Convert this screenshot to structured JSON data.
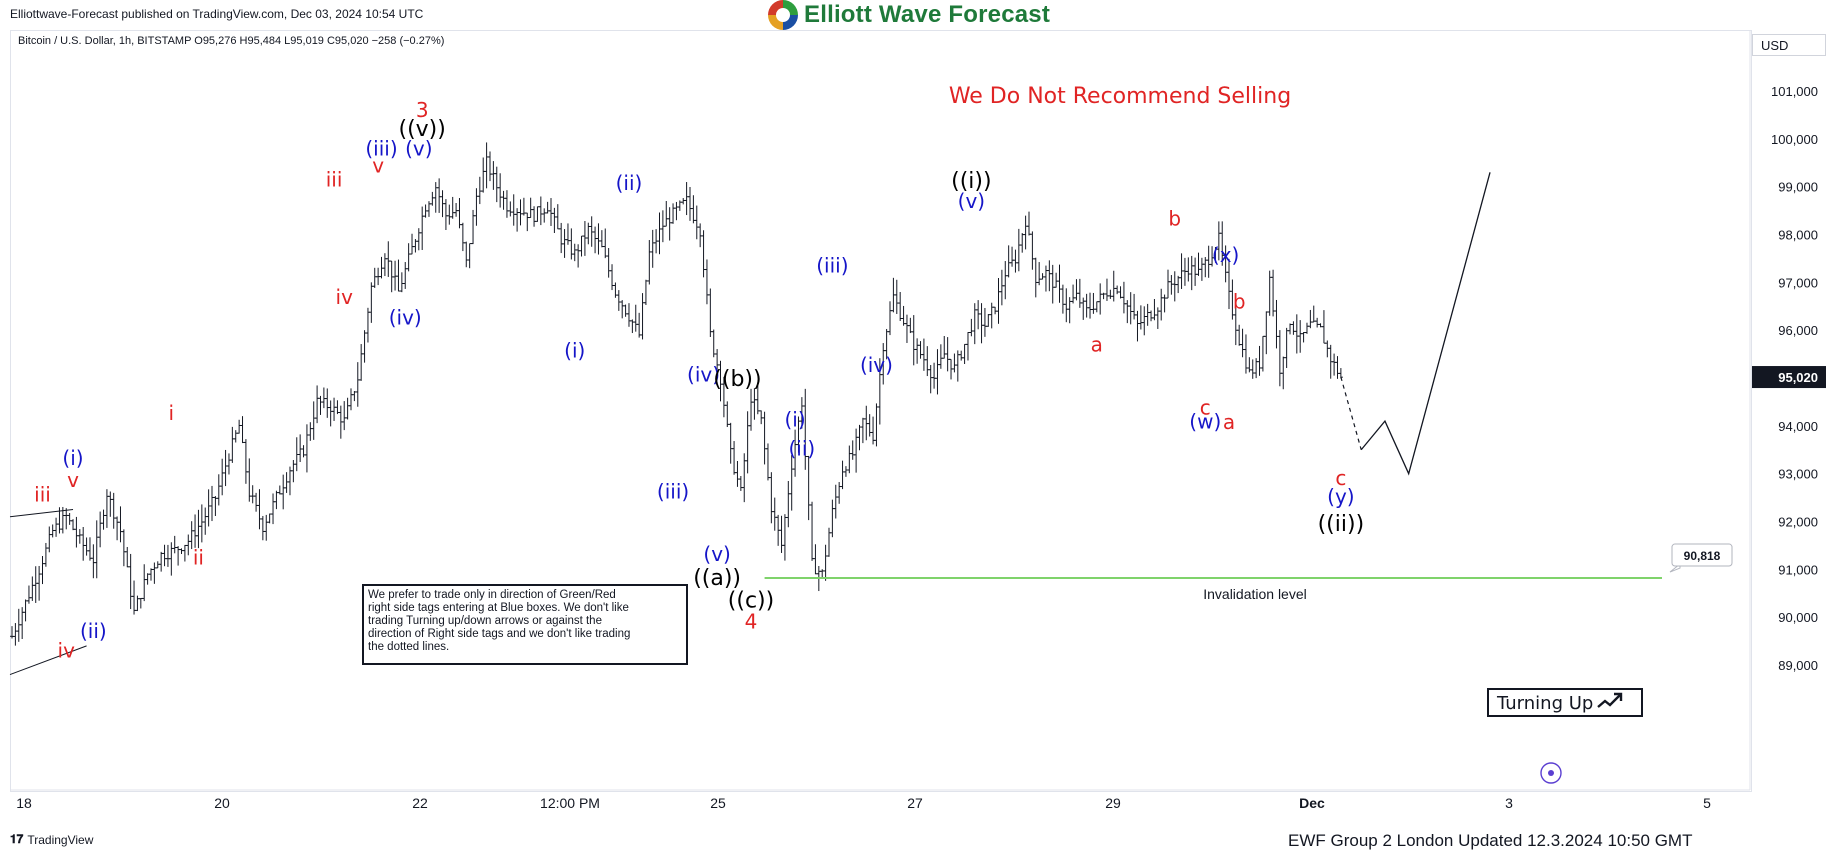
{
  "header": {
    "published_text": "Elliottwave-Forecast published on TradingView.com, Dec 03, 2024 10:54 UTC",
    "logo_text": "Elliott Wave Forecast",
    "symbol_info": "Bitcoin / U.S. Dollar, 1h, BITSTAMP  O95,276  H95,484  L95,019  C95,020  −258 (−0.27%)",
    "currency": "USD"
  },
  "footer": {
    "tradingview_text": "TradingView",
    "updated_text": "EWF Group 2 London Updated 12.3.2024 10:50 GMT"
  },
  "colors": {
    "red": "#e02424",
    "blue": "#1515c8",
    "black": "#000000",
    "green": "#7fd36b",
    "bar": "#131722"
  },
  "chart_data": {
    "type": "line",
    "title": "We Do Not Recommend Selling",
    "xlabel": "",
    "ylabel": "",
    "ylim": [
      88900,
      102300
    ],
    "x_ticks": [
      "18",
      "20",
      "22",
      "12:00 PM",
      "25",
      "27",
      "29",
      "Dec",
      "3",
      "5"
    ],
    "y_ticks": [
      "89,000",
      "90,000",
      "91,000",
      "92,000",
      "93,000",
      "94,000",
      "95,000",
      "96,000",
      "97,000",
      "98,000",
      "99,000",
      "100,000",
      "101,000"
    ],
    "last_price": "95,020",
    "invalidation": {
      "value": 90818,
      "price_label": "90,818",
      "label": "Invalidation level"
    },
    "note_box": "We prefer to trade only in direction of Green/Red right side tags entering at Blue boxes. We don't like trading Turning up/down arrows or against the direction of Right side tags and we don't like trading the dotted lines.",
    "turning_label": "Turning Up",
    "price_path": [
      {
        "t": 0,
        "p": 89600
      },
      {
        "t": 4,
        "p": 90300
      },
      {
        "t": 8,
        "p": 91000
      },
      {
        "t": 12,
        "p": 91800
      },
      {
        "t": 16,
        "p": 92100
      },
      {
        "t": 20,
        "p": 91600
      },
      {
        "t": 24,
        "p": 91200
      },
      {
        "t": 28,
        "p": 92600
      },
      {
        "t": 32,
        "p": 91800
      },
      {
        "t": 36,
        "p": 90100
      },
      {
        "t": 40,
        "p": 90900
      },
      {
        "t": 44,
        "p": 91300
      },
      {
        "t": 48,
        "p": 91400
      },
      {
        "t": 52,
        "p": 91600
      },
      {
        "t": 56,
        "p": 92000
      },
      {
        "t": 60,
        "p": 92500
      },
      {
        "t": 64,
        "p": 93400
      },
      {
        "t": 67,
        "p": 94000
      },
      {
        "t": 70,
        "p": 92600
      },
      {
        "t": 74,
        "p": 91900
      },
      {
        "t": 78,
        "p": 92500
      },
      {
        "t": 82,
        "p": 93100
      },
      {
        "t": 86,
        "p": 93500
      },
      {
        "t": 90,
        "p": 94500
      },
      {
        "t": 94,
        "p": 94400
      },
      {
        "t": 98,
        "p": 94100
      },
      {
        "t": 102,
        "p": 95000
      },
      {
        "t": 106,
        "p": 96900
      },
      {
        "t": 110,
        "p": 97600
      },
      {
        "t": 114,
        "p": 96800
      },
      {
        "t": 118,
        "p": 97700
      },
      {
        "t": 122,
        "p": 98600
      },
      {
        "t": 125,
        "p": 99000
      },
      {
        "t": 128,
        "p": 98400
      },
      {
        "t": 131,
        "p": 98500
      },
      {
        "t": 134,
        "p": 97400
      },
      {
        "t": 137,
        "p": 98800
      },
      {
        "t": 140,
        "p": 99500
      },
      {
        "t": 143,
        "p": 99000
      },
      {
        "t": 146,
        "p": 98600
      },
      {
        "t": 150,
        "p": 98500
      },
      {
        "t": 154,
        "p": 98400
      },
      {
        "t": 158,
        "p": 98600
      },
      {
        "t": 162,
        "p": 97900
      },
      {
        "t": 166,
        "p": 97600
      },
      {
        "t": 170,
        "p": 98100
      },
      {
        "t": 174,
        "p": 97700
      },
      {
        "t": 178,
        "p": 96800
      },
      {
        "t": 182,
        "p": 96300
      },
      {
        "t": 185,
        "p": 95900
      },
      {
        "t": 188,
        "p": 97600
      },
      {
        "t": 192,
        "p": 98200
      },
      {
        "t": 196,
        "p": 98500
      },
      {
        "t": 199,
        "p": 98700
      },
      {
        "t": 203,
        "p": 98100
      },
      {
        "t": 206,
        "p": 95900
      },
      {
        "t": 209,
        "p": 95000
      },
      {
        "t": 212,
        "p": 93400
      },
      {
        "t": 215,
        "p": 92600
      },
      {
        "t": 218,
        "p": 94600
      },
      {
        "t": 221,
        "p": 94100
      },
      {
        "t": 224,
        "p": 92300
      },
      {
        "t": 227,
        "p": 91500
      },
      {
        "t": 230,
        "p": 93200
      },
      {
        "t": 233,
        "p": 94500
      },
      {
        "t": 236,
        "p": 91100
      },
      {
        "t": 239,
        "p": 90900
      },
      {
        "t": 242,
        "p": 92200
      },
      {
        "t": 245,
        "p": 93100
      },
      {
        "t": 248,
        "p": 93400
      },
      {
        "t": 251,
        "p": 94100
      },
      {
        "t": 254,
        "p": 93800
      },
      {
        "t": 257,
        "p": 95700
      },
      {
        "t": 260,
        "p": 96700
      },
      {
        "t": 263,
        "p": 96200
      },
      {
        "t": 266,
        "p": 95700
      },
      {
        "t": 269,
        "p": 95400
      },
      {
        "t": 272,
        "p": 95000
      },
      {
        "t": 275,
        "p": 95500
      },
      {
        "t": 278,
        "p": 95200
      },
      {
        "t": 281,
        "p": 95700
      },
      {
        "t": 284,
        "p": 96300
      },
      {
        "t": 287,
        "p": 96100
      },
      {
        "t": 290,
        "p": 96500
      },
      {
        "t": 293,
        "p": 97200
      },
      {
        "t": 296,
        "p": 97500
      },
      {
        "t": 299,
        "p": 98300
      },
      {
        "t": 302,
        "p": 97100
      },
      {
        "t": 305,
        "p": 97200
      },
      {
        "t": 308,
        "p": 96900
      },
      {
        "t": 311,
        "p": 96500
      },
      {
        "t": 314,
        "p": 96700
      },
      {
        "t": 317,
        "p": 96400
      },
      {
        "t": 320,
        "p": 96600
      },
      {
        "t": 323,
        "p": 96800
      },
      {
        "t": 326,
        "p": 96900
      },
      {
        "t": 329,
        "p": 96500
      },
      {
        "t": 332,
        "p": 96100
      },
      {
        "t": 335,
        "p": 96300
      },
      {
        "t": 338,
        "p": 96500
      },
      {
        "t": 341,
        "p": 96900
      },
      {
        "t": 344,
        "p": 97100
      },
      {
        "t": 347,
        "p": 97300
      },
      {
        "t": 350,
        "p": 97200
      },
      {
        "t": 353,
        "p": 97500
      },
      {
        "t": 356,
        "p": 97900
      },
      {
        "t": 359,
        "p": 96700
      },
      {
        "t": 362,
        "p": 95800
      },
      {
        "t": 365,
        "p": 95100
      },
      {
        "t": 368,
        "p": 95300
      },
      {
        "t": 371,
        "p": 97100
      },
      {
        "t": 374,
        "p": 95200
      },
      {
        "t": 377,
        "p": 96200
      },
      {
        "t": 380,
        "p": 95800
      },
      {
        "t": 383,
        "p": 96100
      },
      {
        "t": 386,
        "p": 96000
      },
      {
        "t": 389,
        "p": 95400
      },
      {
        "t": 392,
        "p": 95020
      }
    ],
    "projection": {
      "dotted": [
        {
          "t": 392,
          "p": 95020
        },
        {
          "t": 398,
          "p": 93500
        }
      ],
      "solid": [
        {
          "t": 398,
          "p": 93500
        },
        {
          "t": 405,
          "p": 94100
        },
        {
          "t": 412,
          "p": 93000
        },
        {
          "t": 436,
          "p": 99300
        }
      ]
    },
    "annotations": [
      {
        "text": "iii",
        "color": "red",
        "t": 9,
        "p": 92420
      },
      {
        "text": "(i)",
        "color": "blue",
        "t": 18,
        "p": 93180
      },
      {
        "text": "v",
        "color": "red",
        "t": 18,
        "p": 92720
      },
      {
        "text": "iv",
        "color": "red",
        "t": 16,
        "p": 89160
      },
      {
        "text": "(ii)",
        "color": "blue",
        "t": 24,
        "p": 89560
      },
      {
        "text": "i",
        "color": "red",
        "t": 47,
        "p": 94120
      },
      {
        "text": "ii",
        "color": "red",
        "t": 55,
        "p": 91100
      },
      {
        "text": "iii",
        "color": "red",
        "t": 95,
        "p": 99000
      },
      {
        "text": "iv",
        "color": "red",
        "t": 98,
        "p": 96550
      },
      {
        "text": "v",
        "color": "red",
        "t": 108,
        "p": 99300
      },
      {
        "text": "(iii)",
        "color": "blue",
        "t": 109,
        "p": 99650
      },
      {
        "text": "(iv)",
        "color": "blue",
        "t": 116,
        "p": 96120
      },
      {
        "text": "(v)",
        "color": "blue",
        "t": 120,
        "p": 99650
      },
      {
        "text": "((v))",
        "color": "black",
        "t": 121,
        "p": 100060
      },
      {
        "text": "3",
        "color": "red",
        "t": 121,
        "p": 100460
      },
      {
        "text": "(ii)",
        "color": "blue",
        "t": 182,
        "p": 98930
      },
      {
        "text": "(i)",
        "color": "blue",
        "t": 166,
        "p": 95430
      },
      {
        "text": "(iii)",
        "color": "blue",
        "t": 195,
        "p": 92480
      },
      {
        "text": "(iv)",
        "color": "blue",
        "t": 204,
        "p": 94930
      },
      {
        "text": "((b))",
        "color": "black",
        "t": 214,
        "p": 94830
      },
      {
        "text": "(v)",
        "color": "blue",
        "t": 208,
        "p": 91170
      },
      {
        "text": "((a))",
        "color": "black",
        "t": 208,
        "p": 90670
      },
      {
        "text": "((c))",
        "color": "black",
        "t": 218,
        "p": 90200
      },
      {
        "text": "4",
        "color": "red",
        "t": 218,
        "p": 89760
      },
      {
        "text": "(i)",
        "color": "blue",
        "t": 231,
        "p": 93990
      },
      {
        "text": "(ii)",
        "color": "blue",
        "t": 233,
        "p": 93380
      },
      {
        "text": "(iii)",
        "color": "blue",
        "t": 242,
        "p": 97210
      },
      {
        "text": "(iv)",
        "color": "blue",
        "t": 255,
        "p": 95130
      },
      {
        "text": "((i))",
        "color": "black",
        "t": 283,
        "p": 98970
      },
      {
        "text": "(v)",
        "color": "blue",
        "t": 283,
        "p": 98550
      },
      {
        "text": "a",
        "color": "red",
        "t": 320,
        "p": 95550
      },
      {
        "text": "b",
        "color": "red",
        "t": 343,
        "p": 98190
      },
      {
        "text": "c",
        "color": "red",
        "t": 352,
        "p": 94240
      },
      {
        "text": "(w)",
        "color": "blue",
        "t": 352,
        "p": 93940
      },
      {
        "text": "(x)",
        "color": "blue",
        "t": 358,
        "p": 97420
      },
      {
        "text": "b",
        "color": "red",
        "t": 362,
        "p": 96450
      },
      {
        "text": "a",
        "color": "red",
        "t": 359,
        "p": 93930
      },
      {
        "text": "c",
        "color": "red",
        "t": 392,
        "p": 92760
      },
      {
        "text": "(y)",
        "color": "blue",
        "t": 392,
        "p": 92380
      },
      {
        "text": "((ii))",
        "color": "black",
        "t": 392,
        "p": 91800
      }
    ]
  }
}
